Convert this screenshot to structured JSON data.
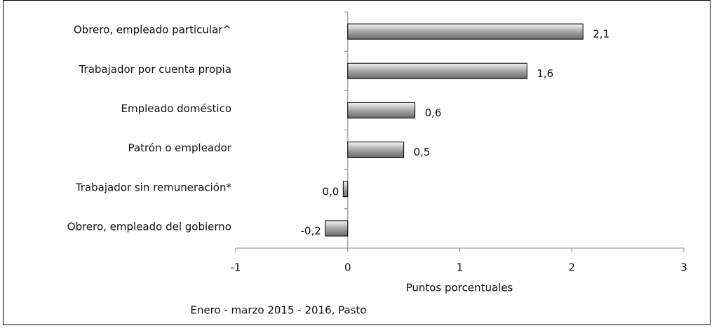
{
  "chart_data": {
    "type": "bar",
    "orientation": "horizontal",
    "categories": [
      "Obrero, empleado particular^",
      "Trabajador por cuenta propia",
      "Empleado doméstico",
      "Patrón o empleador",
      "Trabajador sin remuneración*",
      "Obrero, empleado del gobierno"
    ],
    "values": [
      2.1,
      1.6,
      0.6,
      0.5,
      -0.04,
      -0.2
    ],
    "value_labels": [
      "2,1",
      "1,6",
      "0,6",
      "0,5",
      "0,0",
      "-0,2"
    ],
    "color": "#a6a6a6",
    "xlim": [
      -1,
      3
    ],
    "xticks": [
      -1,
      0,
      1,
      2,
      3
    ],
    "xlabel": "Puntos porcentuales",
    "subtitle": "Enero - marzo 2015 - 2016, Pasto"
  }
}
